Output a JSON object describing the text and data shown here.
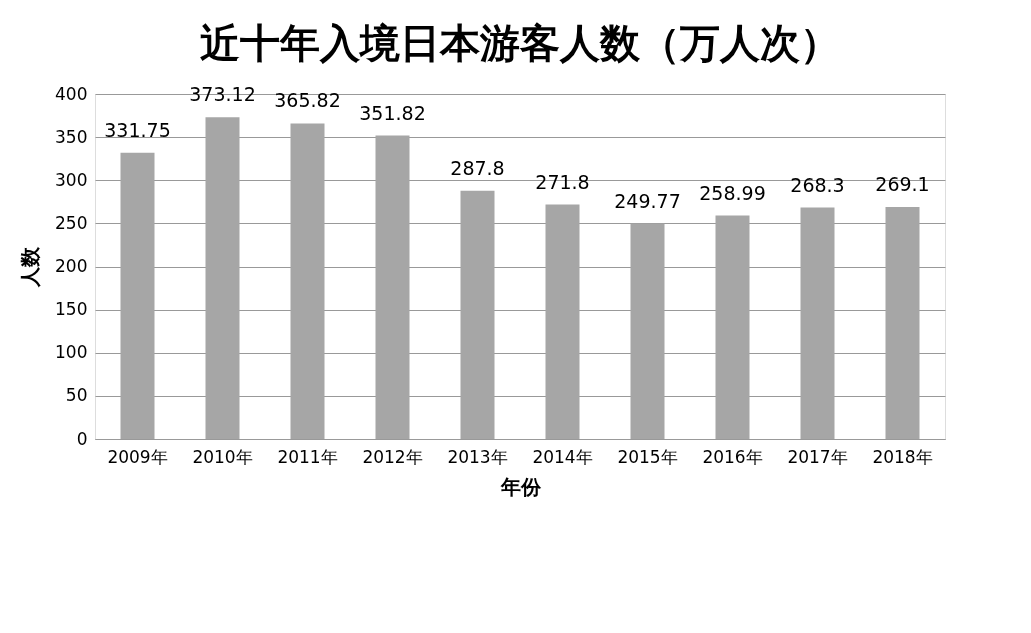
{
  "chart_data": {
    "type": "bar",
    "title": "近十年入境日本游客人数（万人次）",
    "xlabel": "年份",
    "ylabel": "人数",
    "categories": [
      "2009年",
      "2010年",
      "2011年",
      "2012年",
      "2013年",
      "2014年",
      "2015年",
      "2016年",
      "2017年",
      "2018年"
    ],
    "values": [
      331.75,
      373.12,
      365.82,
      351.82,
      287.8,
      271.8,
      249.77,
      258.99,
      268.3,
      269.1
    ],
    "color": "#a6a6a6",
    "ylim": [
      0,
      400
    ],
    "yticks": [
      0,
      50,
      100,
      150,
      200,
      250,
      300,
      350,
      400
    ],
    "grid": "y",
    "data_labels": true
  }
}
